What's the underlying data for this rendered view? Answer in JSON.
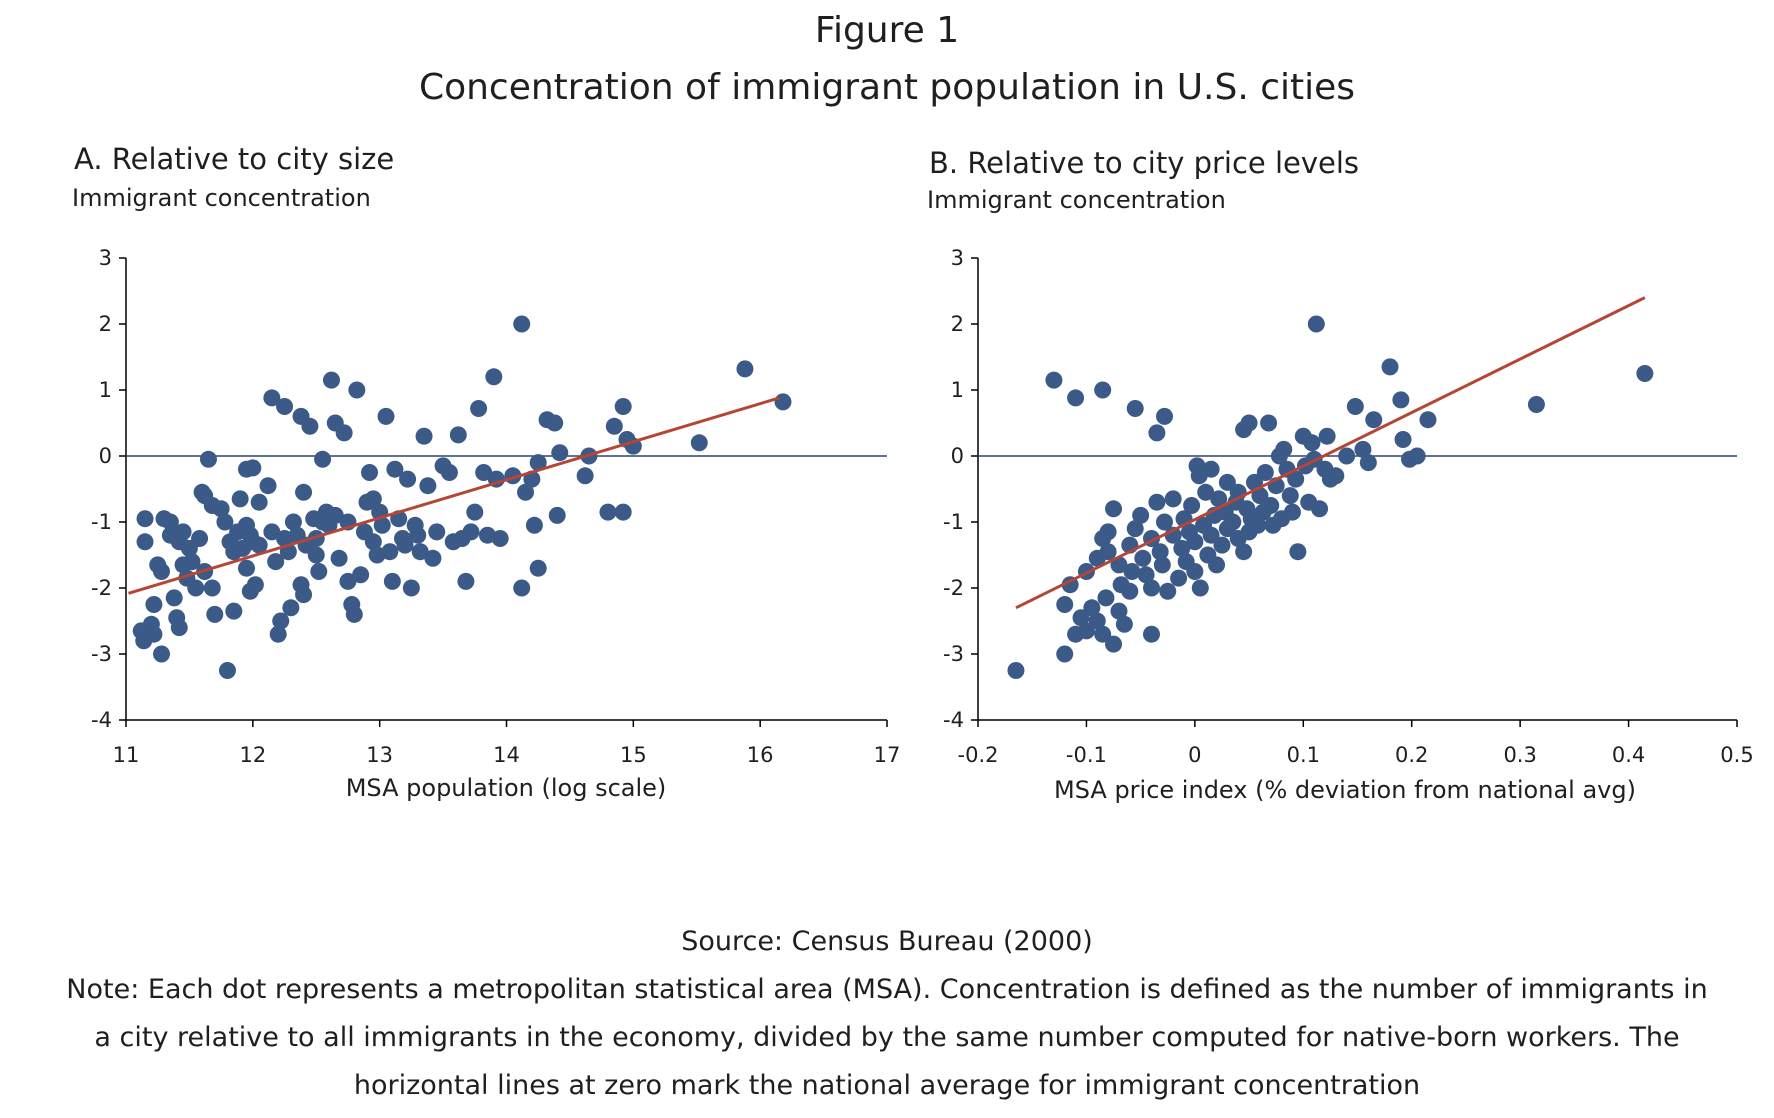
{
  "figure": {
    "label": "Figure 1",
    "title": "Concentration of immigrant population in U.S. cities",
    "source": "Source: Census Bureau (2000)",
    "note": "Note: Each dot represents a metropolitan statistical area (MSA). Concentration is defined as the number of immigrants in a city relative to all immigrants in the economy, divided by the same number computed for native-born workers. The horizontal lines at zero mark the national average for immigrant concentration"
  },
  "colors": {
    "dots": "#3c5a87",
    "trend": "#b64535",
    "zero_line": "#2a4670",
    "axis": "#000000",
    "text": "#1f1f1f"
  },
  "chart_data": [
    {
      "type": "scatter",
      "title": "A. Relative to city size",
      "ylabel": "Immigrant concentration",
      "xlabel": "MSA population (log scale)",
      "xlim": [
        11,
        17
      ],
      "ylim": [
        -4,
        3
      ],
      "xticks": [
        11,
        12,
        13,
        14,
        15,
        16,
        17
      ],
      "xtick_labels": [
        "11",
        "12",
        "13",
        "14",
        "15",
        "16",
        "17"
      ],
      "yticks": [
        3,
        2,
        1,
        0,
        -1,
        -2,
        -3,
        -4
      ],
      "ytick_labels": [
        "3",
        "2",
        "1",
        "0",
        "-1",
        "-2",
        "-3",
        "-4"
      ],
      "hline": 0,
      "trend_line": {
        "x": [
          11.02,
          16.15
        ],
        "y": [
          -2.08,
          0.88
        ]
      },
      "grid": false,
      "legend": false,
      "points": [
        [
          11.15,
          -0.95
        ],
        [
          11.15,
          -1.3
        ],
        [
          11.12,
          -2.65
        ],
        [
          11.14,
          -2.8
        ],
        [
          11.2,
          -2.55
        ],
        [
          11.22,
          -2.7
        ],
        [
          11.28,
          -3.0
        ],
        [
          11.22,
          -2.25
        ],
        [
          11.3,
          -0.95
        ],
        [
          11.35,
          -1.0
        ],
        [
          11.35,
          -1.2
        ],
        [
          11.42,
          -1.3
        ],
        [
          11.45,
          -1.15
        ],
        [
          11.5,
          -1.4
        ],
        [
          11.52,
          -1.6
        ],
        [
          11.58,
          -1.25
        ],
        [
          11.6,
          -0.55
        ],
        [
          11.62,
          -0.6
        ],
        [
          11.65,
          -0.05
        ],
        [
          11.68,
          -0.75
        ],
        [
          11.45,
          -1.65
        ],
        [
          11.48,
          -1.85
        ],
        [
          11.55,
          -2.0
        ],
        [
          11.38,
          -2.15
        ],
        [
          11.4,
          -2.45
        ],
        [
          11.42,
          -2.6
        ],
        [
          11.25,
          -1.65
        ],
        [
          11.28,
          -1.75
        ],
        [
          11.62,
          -1.75
        ],
        [
          11.68,
          -2.0
        ],
        [
          11.7,
          -2.4
        ],
        [
          11.75,
          -0.8
        ],
        [
          11.78,
          -1.0
        ],
        [
          11.82,
          -1.3
        ],
        [
          11.85,
          -1.45
        ],
        [
          11.88,
          -1.15
        ],
        [
          11.9,
          -0.65
        ],
        [
          11.92,
          -1.4
        ],
        [
          11.95,
          -0.2
        ],
        [
          12.0,
          -0.18
        ],
        [
          11.95,
          -1.05
        ],
        [
          11.98,
          -1.2
        ],
        [
          12.0,
          -1.3
        ],
        [
          12.05,
          -0.7
        ],
        [
          12.05,
          -1.35
        ],
        [
          11.95,
          -1.7
        ],
        [
          11.98,
          -2.05
        ],
        [
          12.02,
          -1.95
        ],
        [
          11.85,
          -2.35
        ],
        [
          11.8,
          -3.25
        ],
        [
          12.12,
          -0.45
        ],
        [
          12.15,
          -1.15
        ],
        [
          12.15,
          0.88
        ],
        [
          12.18,
          -1.6
        ],
        [
          12.2,
          -2.7
        ],
        [
          12.22,
          -2.5
        ],
        [
          12.25,
          0.75
        ],
        [
          12.25,
          -1.25
        ],
        [
          12.28,
          -1.45
        ],
        [
          12.3,
          -2.3
        ],
        [
          12.32,
          -1.0
        ],
        [
          12.35,
          -1.2
        ],
        [
          12.38,
          0.6
        ],
        [
          12.38,
          -1.95
        ],
        [
          12.4,
          -2.1
        ],
        [
          12.4,
          -0.55
        ],
        [
          12.42,
          -1.35
        ],
        [
          12.45,
          0.45
        ],
        [
          12.48,
          -0.95
        ],
        [
          12.5,
          -1.25
        ],
        [
          12.5,
          -1.5
        ],
        [
          12.52,
          -1.75
        ],
        [
          12.55,
          -0.05
        ],
        [
          12.55,
          -1.0
        ],
        [
          12.58,
          -0.85
        ],
        [
          12.6,
          -1.05
        ],
        [
          12.62,
          1.15
        ],
        [
          12.65,
          -0.9
        ],
        [
          12.65,
          0.5
        ],
        [
          12.68,
          -1.55
        ],
        [
          12.72,
          0.35
        ],
        [
          12.75,
          -1.0
        ],
        [
          12.75,
          -1.9
        ],
        [
          12.78,
          -2.25
        ],
        [
          12.8,
          -2.4
        ],
        [
          12.82,
          1.0
        ],
        [
          12.85,
          -1.8
        ],
        [
          12.88,
          -1.15
        ],
        [
          12.9,
          -0.7
        ],
        [
          12.92,
          -0.25
        ],
        [
          12.95,
          -0.65
        ],
        [
          12.95,
          -1.3
        ],
        [
          12.98,
          -1.5
        ],
        [
          13.0,
          -0.85
        ],
        [
          13.02,
          -1.05
        ],
        [
          13.05,
          0.6
        ],
        [
          13.08,
          -1.45
        ],
        [
          13.1,
          -1.9
        ],
        [
          13.12,
          -0.2
        ],
        [
          13.15,
          -0.95
        ],
        [
          13.18,
          -1.25
        ],
        [
          13.2,
          -1.35
        ],
        [
          13.22,
          -0.35
        ],
        [
          13.25,
          -2.0
        ],
        [
          13.28,
          -1.05
        ],
        [
          13.3,
          -1.2
        ],
        [
          13.32,
          -1.45
        ],
        [
          13.35,
          0.3
        ],
        [
          13.38,
          -0.45
        ],
        [
          13.42,
          -1.55
        ],
        [
          13.45,
          -1.15
        ],
        [
          13.5,
          -0.15
        ],
        [
          13.55,
          -0.25
        ],
        [
          13.58,
          -1.3
        ],
        [
          13.62,
          0.32
        ],
        [
          13.65,
          -1.25
        ],
        [
          13.68,
          -1.9
        ],
        [
          13.72,
          -1.15
        ],
        [
          13.75,
          -0.85
        ],
        [
          13.78,
          0.72
        ],
        [
          13.82,
          -0.25
        ],
        [
          13.85,
          -1.2
        ],
        [
          13.9,
          1.2
        ],
        [
          13.92,
          -0.35
        ],
        [
          13.95,
          -1.25
        ],
        [
          14.05,
          -0.3
        ],
        [
          14.12,
          2.0
        ],
        [
          14.15,
          -0.55
        ],
        [
          14.2,
          -0.35
        ],
        [
          14.22,
          -1.05
        ],
        [
          14.25,
          -0.1
        ],
        [
          14.25,
          -1.7
        ],
        [
          14.32,
          0.55
        ],
        [
          14.38,
          0.5
        ],
        [
          14.4,
          -0.9
        ],
        [
          14.42,
          0.05
        ],
        [
          14.12,
          -2.0
        ],
        [
          14.62,
          -0.3
        ],
        [
          14.65,
          0.0
        ],
        [
          14.8,
          -0.85
        ],
        [
          14.85,
          0.45
        ],
        [
          14.92,
          0.75
        ],
        [
          14.92,
          -0.85
        ],
        [
          14.95,
          0.25
        ],
        [
          15.0,
          0.15
        ],
        [
          15.52,
          0.2
        ],
        [
          15.88,
          1.32
        ],
        [
          16.18,
          0.82
        ]
      ]
    },
    {
      "type": "scatter",
      "title": "B. Relative to city price levels",
      "ylabel": "Immigrant concentration",
      "xlabel": "MSA price index (% deviation from national avg)",
      "xlim": [
        -0.2,
        0.5
      ],
      "ylim": [
        -4,
        3
      ],
      "xticks": [
        -0.2,
        -0.1,
        0,
        0.1,
        0.2,
        0.3,
        0.4,
        0.5
      ],
      "xtick_labels": [
        "-0.2",
        "-0.1",
        "0",
        "0.1",
        "0.2",
        "0.3",
        "0.4",
        "0.5"
      ],
      "yticks": [
        3,
        2,
        1,
        0,
        -1,
        -2,
        -3,
        -4
      ],
      "ytick_labels": [
        "3",
        "2",
        "1",
        "0",
        "-1",
        "-2",
        "-3",
        "-4"
      ],
      "hline": 0,
      "trend_line": {
        "x": [
          -0.165,
          0.415
        ],
        "y": [
          -2.3,
          2.4
        ]
      },
      "grid": false,
      "legend": false,
      "points": [
        [
          -0.165,
          -3.25
        ],
        [
          -0.13,
          1.15
        ],
        [
          -0.11,
          0.88
        ],
        [
          -0.085,
          1.0
        ],
        [
          -0.055,
          0.72
        ],
        [
          -0.035,
          0.35
        ],
        [
          -0.028,
          0.6
        ],
        [
          -0.12,
          -2.25
        ],
        [
          -0.12,
          -3.0
        ],
        [
          -0.11,
          -2.7
        ],
        [
          -0.105,
          -2.45
        ],
        [
          -0.1,
          -2.65
        ],
        [
          -0.095,
          -2.3
        ],
        [
          -0.09,
          -2.5
        ],
        [
          -0.085,
          -2.7
        ],
        [
          -0.082,
          -2.15
        ],
        [
          -0.075,
          -2.85
        ],
        [
          -0.07,
          -2.35
        ],
        [
          -0.065,
          -2.55
        ],
        [
          -0.06,
          -2.05
        ],
        [
          -0.04,
          -2.7
        ],
        [
          -0.115,
          -1.95
        ],
        [
          -0.1,
          -1.75
        ],
        [
          -0.09,
          -1.55
        ],
        [
          -0.085,
          -1.25
        ],
        [
          -0.08,
          -1.45
        ],
        [
          -0.08,
          -1.15
        ],
        [
          -0.075,
          -0.8
        ],
        [
          -0.07,
          -1.65
        ],
        [
          -0.068,
          -1.95
        ],
        [
          -0.06,
          -1.35
        ],
        [
          -0.058,
          -1.75
        ],
        [
          -0.055,
          -1.1
        ],
        [
          -0.05,
          -0.9
        ],
        [
          -0.048,
          -1.55
        ],
        [
          -0.045,
          -1.8
        ],
        [
          -0.04,
          -2.0
        ],
        [
          -0.04,
          -1.25
        ],
        [
          -0.035,
          -0.7
        ],
        [
          -0.032,
          -1.45
        ],
        [
          -0.03,
          -1.65
        ],
        [
          -0.028,
          -1.0
        ],
        [
          -0.025,
          -2.05
        ],
        [
          -0.02,
          -1.2
        ],
        [
          -0.02,
          -0.65
        ],
        [
          -0.015,
          -1.85
        ],
        [
          -0.012,
          -1.4
        ],
        [
          -0.01,
          -0.95
        ],
        [
          -0.008,
          -1.6
        ],
        [
          -0.005,
          -1.15
        ],
        [
          -0.003,
          -0.75
        ],
        [
          0.0,
          -1.3
        ],
        [
          0.0,
          -1.75
        ],
        [
          0.002,
          -0.15
        ],
        [
          0.004,
          -0.3
        ],
        [
          0.005,
          -2.0
        ],
        [
          0.008,
          -1.05
        ],
        [
          0.01,
          -0.55
        ],
        [
          0.012,
          -1.5
        ],
        [
          0.015,
          -1.2
        ],
        [
          0.015,
          -0.2
        ],
        [
          0.018,
          -0.9
        ],
        [
          0.02,
          -1.65
        ],
        [
          0.022,
          -0.65
        ],
        [
          0.025,
          -1.35
        ],
        [
          0.028,
          -0.85
        ],
        [
          0.03,
          -1.1
        ],
        [
          0.03,
          -0.4
        ],
        [
          0.035,
          -1.0
        ],
        [
          0.038,
          -0.7
        ],
        [
          0.04,
          -1.25
        ],
        [
          0.04,
          -0.55
        ],
        [
          0.045,
          -1.45
        ],
        [
          0.045,
          0.4
        ],
        [
          0.048,
          -0.8
        ],
        [
          0.05,
          -1.15
        ],
        [
          0.05,
          0.5
        ],
        [
          0.052,
          -0.95
        ],
        [
          0.055,
          -0.4
        ],
        [
          0.058,
          -1.05
        ],
        [
          0.06,
          -0.6
        ],
        [
          0.063,
          -0.85
        ],
        [
          0.065,
          -0.25
        ],
        [
          0.068,
          0.5
        ],
        [
          0.07,
          -0.75
        ],
        [
          0.072,
          -1.05
        ],
        [
          0.075,
          -0.45
        ],
        [
          0.078,
          0.0
        ],
        [
          0.08,
          -0.95
        ],
        [
          0.082,
          0.1
        ],
        [
          0.085,
          -0.2
        ],
        [
          0.088,
          -0.6
        ],
        [
          0.09,
          -0.85
        ],
        [
          0.093,
          -0.35
        ],
        [
          0.095,
          -1.45
        ],
        [
          0.1,
          0.3
        ],
        [
          0.102,
          -0.15
        ],
        [
          0.105,
          -0.7
        ],
        [
          0.108,
          0.2
        ],
        [
          0.11,
          -0.05
        ],
        [
          0.112,
          2.0
        ],
        [
          0.115,
          -0.8
        ],
        [
          0.12,
          -0.2
        ],
        [
          0.122,
          0.3
        ],
        [
          0.125,
          -0.35
        ],
        [
          0.13,
          -0.3
        ],
        [
          0.14,
          0.0
        ],
        [
          0.148,
          0.75
        ],
        [
          0.155,
          0.1
        ],
        [
          0.16,
          -0.1
        ],
        [
          0.165,
          0.55
        ],
        [
          0.18,
          1.35
        ],
        [
          0.19,
          0.85
        ],
        [
          0.192,
          0.25
        ],
        [
          0.198,
          -0.05
        ],
        [
          0.205,
          0.0
        ],
        [
          0.215,
          0.55
        ],
        [
          0.315,
          0.78
        ],
        [
          0.415,
          1.25
        ]
      ]
    }
  ]
}
